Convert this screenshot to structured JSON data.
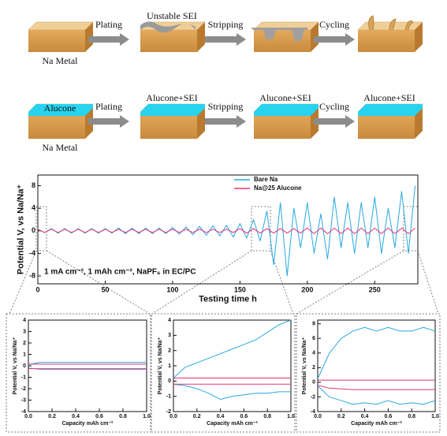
{
  "schematic": {
    "rows": [
      {
        "start_label": "Na Metal",
        "arrows": [
          "Plating",
          "Stripping",
          "Cycling"
        ],
        "state_labels": [
          "Unstable SEI"
        ]
      },
      {
        "start_label": "Na Metal",
        "coating_label": "Alucone",
        "arrows": [
          "Plating",
          "Stripping",
          "Cycling"
        ],
        "state_labels": [
          "Alucone+SEI",
          "Alucone+SEI",
          "Alucone+SEI"
        ]
      }
    ]
  },
  "chart_data": [
    {
      "type": "line",
      "xlabel": "Testing time h",
      "ylabel": "Potential V, vs Na/Na⁺",
      "annotation": "1 mA cm⁻², 1 mAh cm⁻², NaPF₆ in EC/PC",
      "legend": "top-center",
      "x": [
        0,
        5,
        10,
        15,
        20,
        25,
        30,
        35,
        40,
        45,
        50,
        55,
        60,
        65,
        70,
        75,
        80,
        85,
        90,
        95,
        100,
        105,
        110,
        115,
        120,
        125,
        130,
        135,
        140,
        145,
        150,
        155,
        160,
        165,
        170,
        175,
        180,
        185,
        190,
        195,
        200,
        205,
        210,
        215,
        220,
        225,
        230,
        235,
        240,
        245,
        250,
        255,
        260,
        265,
        270,
        275,
        280
      ],
      "series": [
        {
          "name": "Bare Na",
          "color": "#29a8e0",
          "values": [
            0.3,
            -0.3,
            0.4,
            -0.4,
            0.4,
            -0.4,
            0.4,
            -0.4,
            0.4,
            -0.4,
            0.4,
            -0.4,
            0.5,
            -0.5,
            0.5,
            -0.5,
            0.5,
            -0.5,
            0.5,
            -0.5,
            0.6,
            -0.6,
            0.7,
            -0.7,
            0.8,
            -0.8,
            0.9,
            -0.9,
            1,
            -1.1,
            1.3,
            -1.3,
            2,
            -1.8,
            3.5,
            -6,
            5,
            -8,
            4,
            -3,
            5,
            -4,
            3,
            -5,
            6,
            -3,
            5,
            -4,
            5,
            -3,
            6,
            -4,
            4,
            -3,
            7,
            -4,
            8
          ]
        },
        {
          "name": "Na@25 Alucone",
          "color": "#e8327a",
          "values": [
            0.3,
            -0.3,
            0.3,
            -0.3,
            0.3,
            -0.3,
            0.3,
            -0.3,
            0.3,
            -0.3,
            0.3,
            -0.3,
            0.3,
            -0.3,
            0.3,
            -0.3,
            0.3,
            -0.3,
            0.3,
            -0.3,
            0.3,
            -0.3,
            0.3,
            -0.3,
            0.3,
            -0.3,
            0.3,
            -0.3,
            0.3,
            -0.3,
            0.4,
            -0.4,
            0.4,
            -0.4,
            0.4,
            -0.4,
            0.4,
            -0.4,
            0.4,
            -0.4,
            0.5,
            -0.5,
            0.5,
            -0.5,
            0.5,
            -0.5,
            0.5,
            -0.5,
            0.5,
            -0.5,
            0.5,
            -0.5,
            0.5,
            -0.5,
            0.5,
            -0.5,
            0.5
          ]
        }
      ],
      "xlim": [
        0,
        282
      ],
      "ylim": [
        -9.4,
        9.9
      ],
      "xticks": [
        0,
        50,
        100,
        150,
        200,
        250
      ],
      "yticks": [
        -8,
        -4,
        0,
        4,
        8
      ]
    },
    {
      "type": "line",
      "xlabel": "Capacity mAh cm⁻²",
      "ylabel": "Potential V, vs Na/Na⁺",
      "x": [
        0,
        0.1,
        0.2,
        0.3,
        0.4,
        0.5,
        0.6,
        0.7,
        0.8,
        0.9,
        1.0
      ],
      "series": [
        {
          "color": "#29a8e0",
          "values": [
            0.1,
            0.3,
            0.3,
            0.3,
            0.3,
            0.3,
            0.3,
            0.3,
            0.3,
            0.3,
            0.3
          ]
        },
        {
          "color": "#29a8e0",
          "values": [
            -0.2,
            -0.3,
            -0.3,
            -0.3,
            -0.3,
            -0.3,
            -0.3,
            -0.3,
            -0.3,
            -0.3,
            -0.3
          ]
        },
        {
          "color": "#e8327a",
          "values": [
            0.15,
            0.15,
            0.15,
            0.15,
            0.15,
            0.15,
            0.15,
            0.15,
            0.15,
            0.15,
            0.15
          ]
        },
        {
          "color": "#e8327a",
          "values": [
            -0.25,
            -0.25,
            -0.25,
            -0.25,
            -0.25,
            -0.25,
            -0.25,
            -0.25,
            -0.25,
            -0.25,
            -0.25
          ]
        }
      ],
      "xlim": [
        0,
        1
      ],
      "ylim": [
        -4,
        4
      ],
      "xticks": [
        {
          "value": 0,
          "label": "0.0"
        },
        0.2,
        0.4,
        0.6,
        0.8,
        {
          "value": 1,
          "label": "1.0"
        }
      ],
      "yticks": [
        -4,
        -3,
        -2,
        -1,
        0,
        1,
        2,
        3,
        4
      ]
    },
    {
      "type": "line",
      "xlabel": "Capacity mAh cm⁻²",
      "ylabel": "Potential V, vs Na/Na⁺",
      "x": [
        0,
        0.1,
        0.2,
        0.3,
        0.4,
        0.5,
        0.6,
        0.7,
        0.8,
        0.9,
        1.0
      ],
      "series": [
        {
          "color": "#29a8e0",
          "values": [
            0.2,
            0.9,
            1.2,
            1.5,
            1.8,
            2.1,
            2.4,
            2.7,
            3.2,
            3.7,
            4.0
          ]
        },
        {
          "color": "#29a8e0",
          "values": [
            -0.2,
            -0.3,
            -0.5,
            -0.8,
            -1.2,
            -1.0,
            -0.9,
            -0.8,
            -0.8,
            -0.7,
            -0.7
          ]
        },
        {
          "color": "#e8327a",
          "values": [
            0.2,
            0.2,
            0.2,
            0.2,
            0.2,
            0.2,
            0.2,
            0.2,
            0.2,
            0.2,
            0.2
          ]
        },
        {
          "color": "#e8327a",
          "values": [
            -0.2,
            -0.2,
            -0.2,
            -0.2,
            -0.2,
            -0.2,
            -0.2,
            -0.2,
            -0.2,
            -0.2,
            -0.2
          ]
        }
      ],
      "xlim": [
        0,
        1
      ],
      "ylim": [
        -2,
        4
      ],
      "xticks": [
        {
          "value": 0,
          "label": "0.0"
        },
        0.2,
        0.4,
        0.6,
        0.8,
        {
          "value": 1,
          "label": "1.0"
        }
      ],
      "yticks": [
        -2,
        -1,
        0,
        1,
        2,
        3,
        4
      ]
    },
    {
      "type": "line",
      "xlabel": "Capacity mAh cm⁻²",
      "ylabel": "Potential V, vs Na/Na⁺",
      "x": [
        0,
        0.1,
        0.2,
        0.3,
        0.4,
        0.5,
        0.6,
        0.7,
        0.8,
        0.9,
        1.0
      ],
      "series": [
        {
          "color": "#29a8e0",
          "values": [
            0.5,
            4,
            6,
            7,
            7.5,
            7,
            7.5,
            7,
            7,
            7.5,
            7
          ]
        },
        {
          "color": "#29a8e0",
          "values": [
            -0.5,
            -2,
            -2.5,
            -3,
            -2.8,
            -3,
            -2.5,
            -3,
            -2.8,
            -3,
            -2.5
          ]
        },
        {
          "color": "#e8327a",
          "values": [
            0.3,
            0.3,
            0.3,
            0.3,
            0.3,
            0.3,
            0.3,
            0.3,
            0.3,
            0.3,
            0.3
          ]
        },
        {
          "color": "#e8327a",
          "values": [
            -0.4,
            -0.8,
            -0.9,
            -1,
            -1,
            -1,
            -1,
            -1,
            -1,
            -1,
            -1
          ]
        }
      ],
      "xlim": [
        0,
        1
      ],
      "ylim": [
        -4,
        8.5
      ],
      "xticks": [
        {
          "value": 0,
          "label": "0.0"
        },
        0.2,
        0.4,
        0.6,
        0.8,
        {
          "value": 1,
          "label": "1.0"
        }
      ],
      "yticks": [
        -4,
        -2,
        0,
        2,
        4,
        6,
        8
      ]
    }
  ]
}
